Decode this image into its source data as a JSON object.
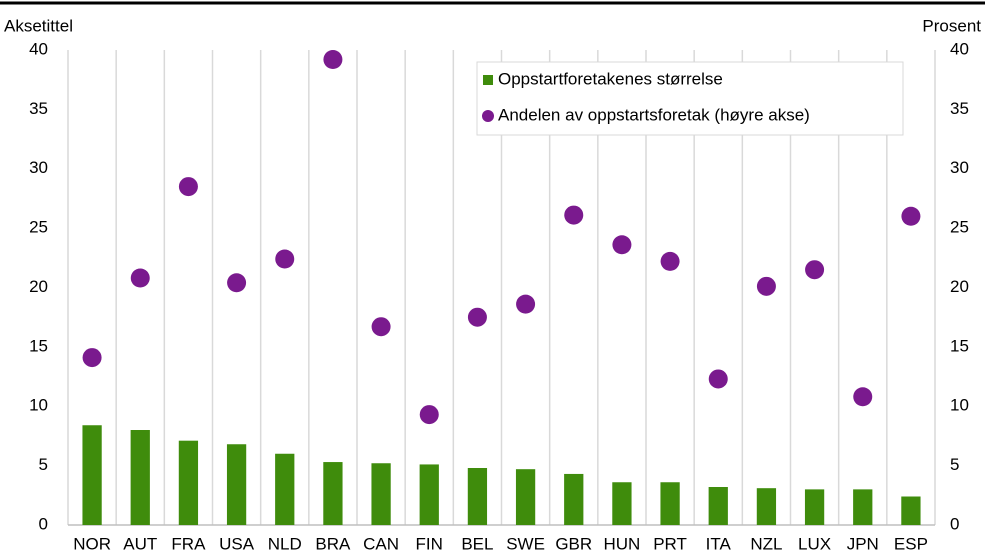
{
  "chart_data": {
    "type": "bar_dot",
    "y_label": "Aksetittel",
    "y2_label": "Prosent",
    "categories": [
      "NOR",
      "AUT",
      "FRA",
      "USA",
      "NLD",
      "BRA",
      "CAN",
      "FIN",
      "BEL",
      "SWE",
      "GBR",
      "HUN",
      "PRT",
      "ITA",
      "NZL",
      "LUX",
      "JPN",
      "ESP"
    ],
    "series": [
      {
        "name": "Oppstartforetakenes størrelse",
        "color": "#3f8c0c",
        "type": "bar",
        "values": [
          8.4,
          8.0,
          7.1,
          6.8,
          6.0,
          5.3,
          5.2,
          5.1,
          4.8,
          4.7,
          4.3,
          3.6,
          3.6,
          3.2,
          3.1,
          3.0,
          3.0,
          2.4
        ]
      },
      {
        "name": "Andelen av oppstartsforetak (høyre akse)",
        "color": "#7a1a8e",
        "type": "dot",
        "axis": "y2",
        "values": [
          14.1,
          20.8,
          28.5,
          20.4,
          22.4,
          39.2,
          16.7,
          9.3,
          17.5,
          18.6,
          26.1,
          23.6,
          22.2,
          12.3,
          20.1,
          21.5,
          10.8,
          26.0
        ]
      }
    ],
    "ylim": [
      0,
      40
    ],
    "yticks": [
      0,
      5,
      10,
      15,
      20,
      25,
      30,
      35,
      40
    ],
    "y2lim": [
      0,
      40
    ],
    "y2ticks": [
      0,
      5,
      10,
      15,
      20,
      25,
      30,
      35,
      40
    ],
    "grid": "x",
    "legend": "upper right"
  }
}
